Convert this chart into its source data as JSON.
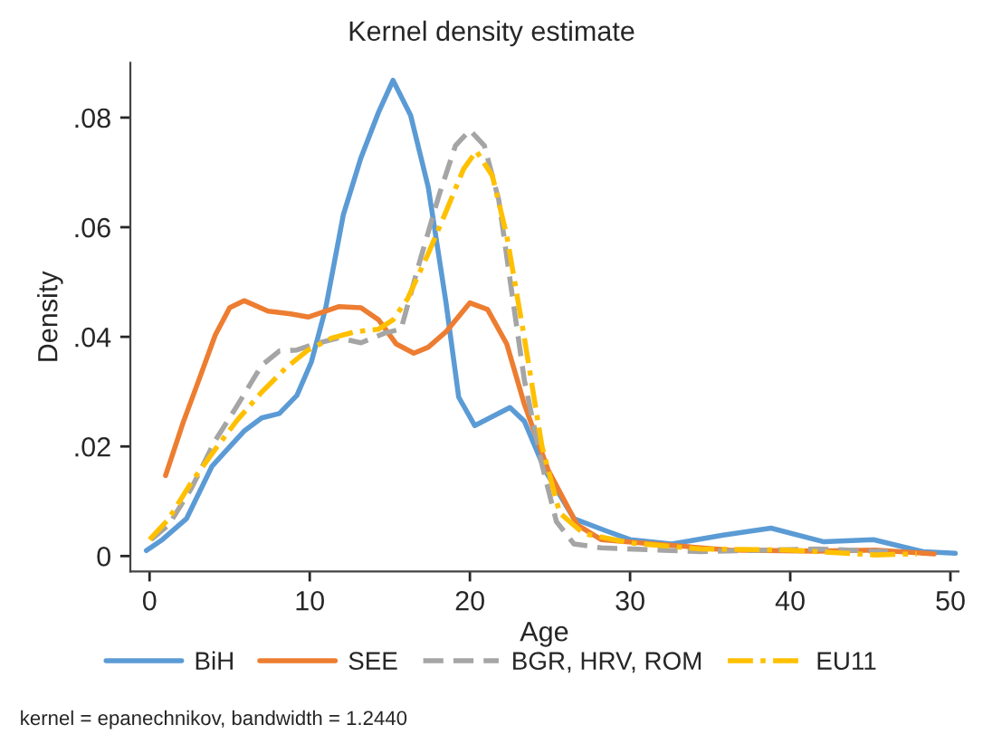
{
  "chart_data": {
    "type": "line",
    "title": "Kernel density estimate",
    "xlabel": "Age",
    "ylabel": "Density",
    "xlim": [
      -1.2,
      50.5
    ],
    "xticks": [
      0,
      10,
      20,
      30,
      40,
      50
    ],
    "ylim": [
      -0.0028,
      0.09
    ],
    "yticks": [
      {
        "value": 0,
        "label": "0"
      },
      {
        "value": 0.02,
        "label": ".02"
      },
      {
        "value": 0.04,
        "label": ".04"
      },
      {
        "value": 0.06,
        "label": ".06"
      },
      {
        "value": 0.08,
        "label": ".08"
      }
    ],
    "grid": false,
    "legend": "bottom",
    "annotations": [
      "kernel = epanechnikov, bandwidth = 1.2440"
    ],
    "series": [
      {
        "name": "BiH",
        "color": "#5b9bd5",
        "line_style": "solid",
        "x": [
          -0.2,
          0.8,
          2.3,
          3.9,
          5.9,
          7.0,
          8.1,
          9.2,
          10.1,
          11.0,
          12.1,
          13.2,
          14.3,
          15.2,
          16.3,
          17.4,
          18.5,
          19.3,
          20.3,
          22.5,
          23.4,
          24.7,
          26.5,
          28.5,
          30.0,
          32.6,
          35.8,
          38.8,
          42.1,
          45.2,
          48.3,
          50.3
        ],
        "values": [
          0.001,
          0.003,
          0.0068,
          0.0164,
          0.0228,
          0.0252,
          0.026,
          0.0293,
          0.0354,
          0.0453,
          0.0623,
          0.0727,
          0.081,
          0.0868,
          0.0804,
          0.0673,
          0.0464,
          0.029,
          0.0238,
          0.0271,
          0.0246,
          0.0156,
          0.0068,
          0.0046,
          0.003,
          0.0022,
          0.0038,
          0.0051,
          0.0026,
          0.003,
          0.0008,
          0.0005
        ]
      },
      {
        "name": "SEE",
        "color": "#ed7d31",
        "line_style": "solid",
        "x": [
          1.0,
          2.1,
          3.0,
          4.1,
          5.0,
          5.9,
          7.4,
          8.8,
          9.9,
          11.8,
          13.2,
          14.3,
          15.4,
          16.5,
          17.4,
          18.5,
          20.0,
          21.1,
          22.3,
          23.4,
          24.9,
          26.7,
          28.2,
          31.5,
          36.2,
          41.7,
          45.3,
          49.0
        ],
        "values": [
          0.0147,
          0.0244,
          0.0315,
          0.0403,
          0.0453,
          0.0466,
          0.0447,
          0.0442,
          0.0436,
          0.0455,
          0.0453,
          0.0431,
          0.0387,
          0.037,
          0.0381,
          0.0409,
          0.0462,
          0.045,
          0.0387,
          0.0277,
          0.0156,
          0.0057,
          0.003,
          0.0022,
          0.0011,
          0.0009,
          0.0011,
          0.0004
        ]
      },
      {
        "name": "BGR, HRV, ROM",
        "color": "#a5a5a5",
        "line_style": "dashed",
        "x": [
          0.1,
          1.2,
          2.6,
          4.1,
          5.4,
          7.0,
          8.1,
          9.2,
          10.3,
          11.8,
          13.2,
          14.7,
          15.7,
          16.9,
          18.1,
          19.1,
          20.0,
          20.9,
          21.8,
          22.7,
          23.4,
          24.5,
          25.4,
          26.5,
          28.2,
          34.4,
          41.7,
          46.1
        ],
        "values": [
          0.003,
          0.0057,
          0.0123,
          0.0211,
          0.0271,
          0.0348,
          0.0374,
          0.0376,
          0.0387,
          0.0398,
          0.0389,
          0.0407,
          0.0414,
          0.0541,
          0.0661,
          0.0749,
          0.0777,
          0.0749,
          0.065,
          0.0464,
          0.0321,
          0.0167,
          0.0063,
          0.0022,
          0.0015,
          0.0008,
          0.0013,
          0.0008
        ]
      },
      {
        "name": "EU11",
        "color": "#ffc000",
        "line_style": "dashdot",
        "x": [
          0.0,
          1.2,
          2.6,
          4.1,
          5.5,
          7.0,
          8.5,
          9.9,
          11.4,
          12.8,
          14.3,
          15.2,
          16.1,
          17.4,
          18.5,
          19.6,
          20.4,
          21.4,
          22.3,
          23.4,
          24.5,
          25.6,
          27.1,
          30.0,
          34.4,
          39.9,
          45.3,
          47.9
        ],
        "values": [
          0.003,
          0.0068,
          0.0134,
          0.0195,
          0.0249,
          0.0299,
          0.0343,
          0.0376,
          0.0398,
          0.0409,
          0.0414,
          0.0431,
          0.0469,
          0.0552,
          0.0628,
          0.0706,
          0.0739,
          0.0694,
          0.0585,
          0.0398,
          0.02,
          0.0079,
          0.0041,
          0.0024,
          0.0013,
          0.0011,
          0.0002,
          0.0004
        ]
      }
    ]
  }
}
